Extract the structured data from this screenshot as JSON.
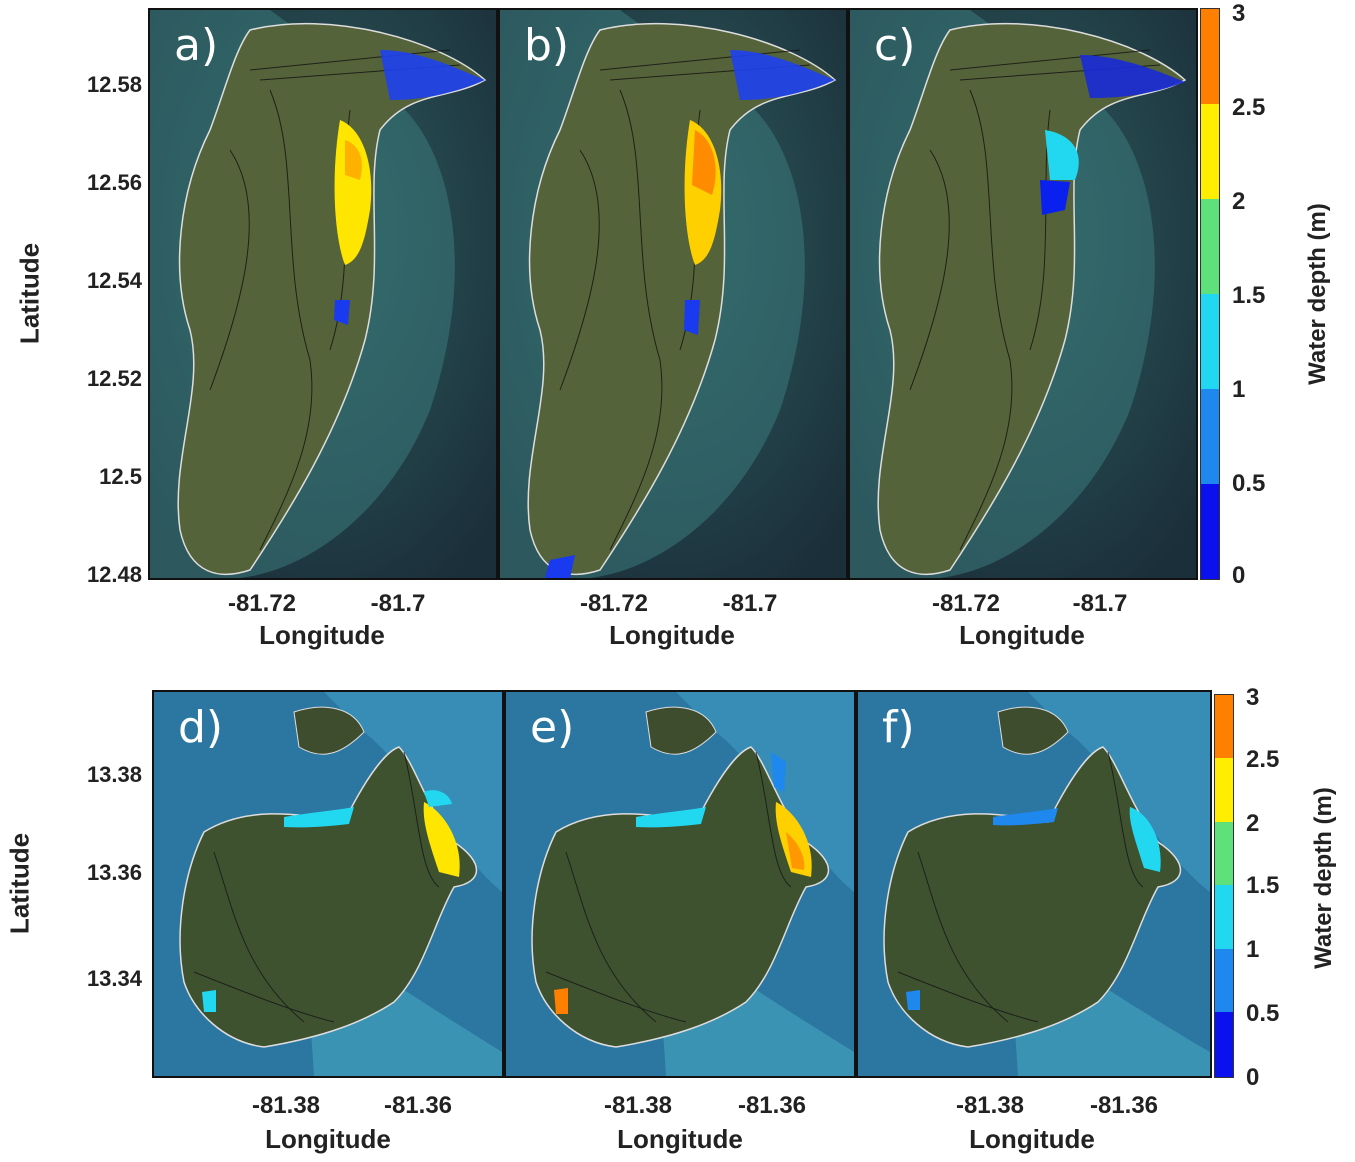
{
  "top_row": {
    "panel_labels": [
      "a)",
      "b)",
      "c)"
    ],
    "y_axis": {
      "label": "Latitude",
      "ticks": [
        "12.58",
        "12.56",
        "12.54",
        "12.52",
        "12.5",
        "12.48"
      ]
    },
    "x_axis": {
      "label": "Longitude",
      "ticks": [
        "-81.72",
        "-81.7"
      ]
    },
    "colorbar": {
      "label": "Water depth (m)",
      "ticks": [
        "3",
        "2.5",
        "2",
        "1.5",
        "1",
        "0.5",
        "0"
      ]
    }
  },
  "bottom_row": {
    "panel_labels": [
      "d)",
      "e)",
      "f)"
    ],
    "y_axis": {
      "label": "Latitude",
      "ticks": [
        "13.38",
        "13.36",
        "13.34"
      ]
    },
    "x_axis": {
      "label": "Longitude",
      "ticks": [
        "-81.38",
        "-81.36"
      ]
    },
    "colorbar": {
      "label": "Water depth (m)",
      "ticks": [
        "3",
        "2.5",
        "2",
        "1.5",
        "1",
        "0.5",
        "0"
      ]
    }
  },
  "colors": {
    "depth_scale": [
      "#ff7f00",
      "#ffee00",
      "#5ee07a",
      "#22d8f0",
      "#1e88ee",
      "#0a10ee"
    ],
    "ocean_top": "#1e3a4a",
    "ocean_bottom": "#2f7fa6",
    "land": "#4f5e36"
  }
}
